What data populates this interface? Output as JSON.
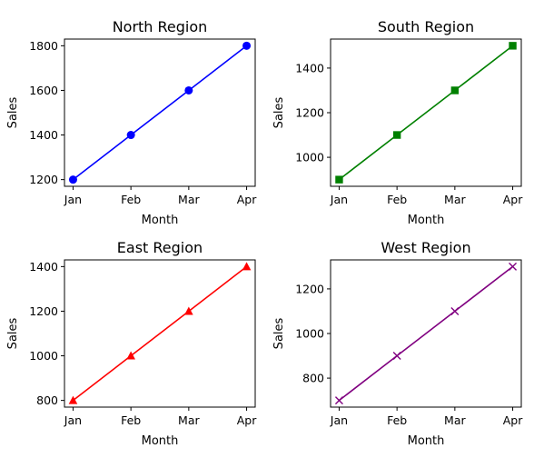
{
  "chart_data": [
    {
      "type": "line",
      "title": "North Region",
      "xlabel": "Month",
      "ylabel": "Sales",
      "categories": [
        "Jan",
        "Feb",
        "Mar",
        "Apr"
      ],
      "series": [
        {
          "values": [
            1200,
            1400,
            1600,
            1800
          ],
          "color": "#0000ff",
          "marker": "circle"
        }
      ],
      "ylim": [
        1170,
        1830
      ],
      "yticks": [
        1200,
        1400,
        1600,
        1800
      ],
      "grid": false
    },
    {
      "type": "line",
      "title": "South Region",
      "xlabel": "Month",
      "ylabel": "Sales",
      "categories": [
        "Jan",
        "Feb",
        "Mar",
        "Apr"
      ],
      "series": [
        {
          "values": [
            900,
            1100,
            1300,
            1500
          ],
          "color": "#008000",
          "marker": "square"
        }
      ],
      "ylim": [
        870,
        1530
      ],
      "yticks": [
        1000,
        1200,
        1400
      ],
      "grid": false
    },
    {
      "type": "line",
      "title": "East Region",
      "xlabel": "Month",
      "ylabel": "Sales",
      "categories": [
        "Jan",
        "Feb",
        "Mar",
        "Apr"
      ],
      "series": [
        {
          "values": [
            800,
            1000,
            1200,
            1400
          ],
          "color": "#ff0000",
          "marker": "triangle"
        }
      ],
      "ylim": [
        770,
        1430
      ],
      "yticks": [
        800,
        1000,
        1200,
        1400
      ],
      "grid": false
    },
    {
      "type": "line",
      "title": "West Region",
      "xlabel": "Month",
      "ylabel": "Sales",
      "categories": [
        "Jan",
        "Feb",
        "Mar",
        "Apr"
      ],
      "series": [
        {
          "values": [
            700,
            900,
            1100,
            1300
          ],
          "color": "#800080",
          "marker": "x"
        }
      ],
      "ylim": [
        670,
        1330
      ],
      "yticks": [
        800,
        1000,
        1200
      ],
      "grid": false
    }
  ]
}
